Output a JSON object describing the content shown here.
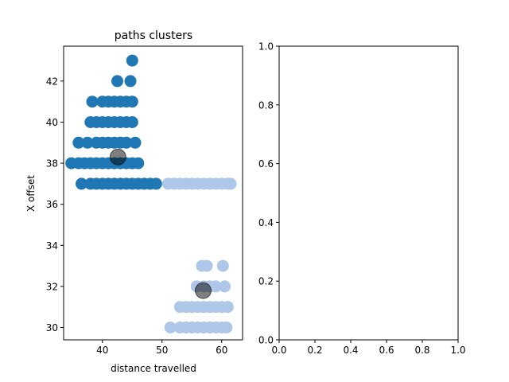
{
  "chart_data": [
    {
      "type": "scatter",
      "title": "paths clusters",
      "xlabel": "distance travelled",
      "ylabel": "X offset",
      "xlim": [
        33.5,
        63.5
      ],
      "ylim": [
        29.4,
        43.7
      ],
      "xticks": [
        "40",
        "50",
        "60"
      ],
      "xtick_values": [
        40,
        50,
        60
      ],
      "yticks": [
        "30",
        "32",
        "34",
        "36",
        "38",
        "40",
        "42"
      ],
      "ytick_values": [
        30,
        32,
        34,
        36,
        38,
        40,
        42
      ],
      "grid": false,
      "series": [
        {
          "color": "#1f77b4",
          "points": [
            [
              45.0,
              43
            ],
            [
              42.5,
              42
            ],
            [
              44.7,
              42
            ],
            [
              38.3,
              41
            ],
            [
              40.0,
              41
            ],
            [
              41.0,
              41
            ],
            [
              42.0,
              41
            ],
            [
              43.0,
              41
            ],
            [
              44.0,
              41
            ],
            [
              45.0,
              41
            ],
            [
              38.0,
              40
            ],
            [
              39.0,
              40
            ],
            [
              40.0,
              40
            ],
            [
              41.0,
              40
            ],
            [
              42.0,
              40
            ],
            [
              43.0,
              40
            ],
            [
              44.0,
              40
            ],
            [
              45.0,
              40
            ],
            [
              36.0,
              39
            ],
            [
              37.5,
              39
            ],
            [
              39.0,
              39
            ],
            [
              40.0,
              39
            ],
            [
              41.0,
              39
            ],
            [
              42.0,
              39
            ],
            [
              43.0,
              39
            ],
            [
              44.0,
              39
            ],
            [
              45.5,
              39
            ],
            [
              34.8,
              38
            ],
            [
              36.0,
              38
            ],
            [
              37.0,
              38
            ],
            [
              38.0,
              38
            ],
            [
              39.0,
              38
            ],
            [
              40.0,
              38
            ],
            [
              41.0,
              38
            ],
            [
              42.0,
              38
            ],
            [
              43.0,
              38
            ],
            [
              44.0,
              38
            ],
            [
              45.0,
              38
            ],
            [
              46.0,
              38
            ],
            [
              36.5,
              37
            ],
            [
              38.0,
              37
            ],
            [
              39.0,
              37
            ],
            [
              40.0,
              37
            ],
            [
              41.0,
              37
            ],
            [
              42.0,
              37
            ],
            [
              43.0,
              37
            ],
            [
              44.0,
              37
            ],
            [
              45.0,
              37
            ],
            [
              46.0,
              37
            ],
            [
              47.0,
              37
            ],
            [
              48.0,
              37
            ],
            [
              49.0,
              37
            ]
          ]
        },
        {
          "color": "#aec7e8",
          "points": [
            [
              51.0,
              37
            ],
            [
              52.0,
              37
            ],
            [
              53.0,
              37
            ],
            [
              54.0,
              37
            ],
            [
              55.0,
              37
            ],
            [
              56.0,
              37
            ],
            [
              57.0,
              37
            ],
            [
              58.0,
              37
            ],
            [
              59.0,
              37
            ],
            [
              60.0,
              37
            ],
            [
              61.0,
              37
            ],
            [
              61.5,
              37
            ],
            [
              56.7,
              33
            ],
            [
              57.5,
              33
            ],
            [
              60.2,
              33
            ],
            [
              55.8,
              32
            ],
            [
              57.0,
              32
            ],
            [
              58.0,
              32
            ],
            [
              59.0,
              32
            ],
            [
              60.5,
              32
            ],
            [
              53.0,
              31
            ],
            [
              54.0,
              31
            ],
            [
              55.0,
              31
            ],
            [
              56.0,
              31
            ],
            [
              57.0,
              31
            ],
            [
              58.0,
              31
            ],
            [
              59.0,
              31
            ],
            [
              60.0,
              31
            ],
            [
              61.0,
              31
            ],
            [
              51.4,
              30
            ],
            [
              53.0,
              30
            ],
            [
              54.0,
              30
            ],
            [
              55.0,
              30
            ],
            [
              56.0,
              30
            ],
            [
              57.0,
              30
            ],
            [
              58.0,
              30
            ],
            [
              59.0,
              30
            ],
            [
              60.0,
              30
            ],
            [
              60.8,
              30
            ]
          ]
        }
      ],
      "centroids": {
        "color": "#000000",
        "opacity": 0.5,
        "points": [
          [
            42.6,
            38.3
          ],
          [
            56.9,
            31.8
          ]
        ]
      }
    },
    {
      "type": "scatter",
      "title": "",
      "xlabel": "",
      "ylabel": "",
      "xlim": [
        0.0,
        1.0
      ],
      "ylim": [
        0.0,
        1.0
      ],
      "xticks": [
        "0.0",
        "0.2",
        "0.4",
        "0.6",
        "0.8",
        "1.0"
      ],
      "xtick_values": [
        0.0,
        0.2,
        0.4,
        0.6,
        0.8,
        1.0
      ],
      "yticks": [
        "0.0",
        "0.2",
        "0.4",
        "0.6",
        "0.8",
        "1.0"
      ],
      "ytick_values": [
        0.0,
        0.2,
        0.4,
        0.6,
        0.8,
        1.0
      ],
      "grid": false,
      "series": []
    }
  ]
}
